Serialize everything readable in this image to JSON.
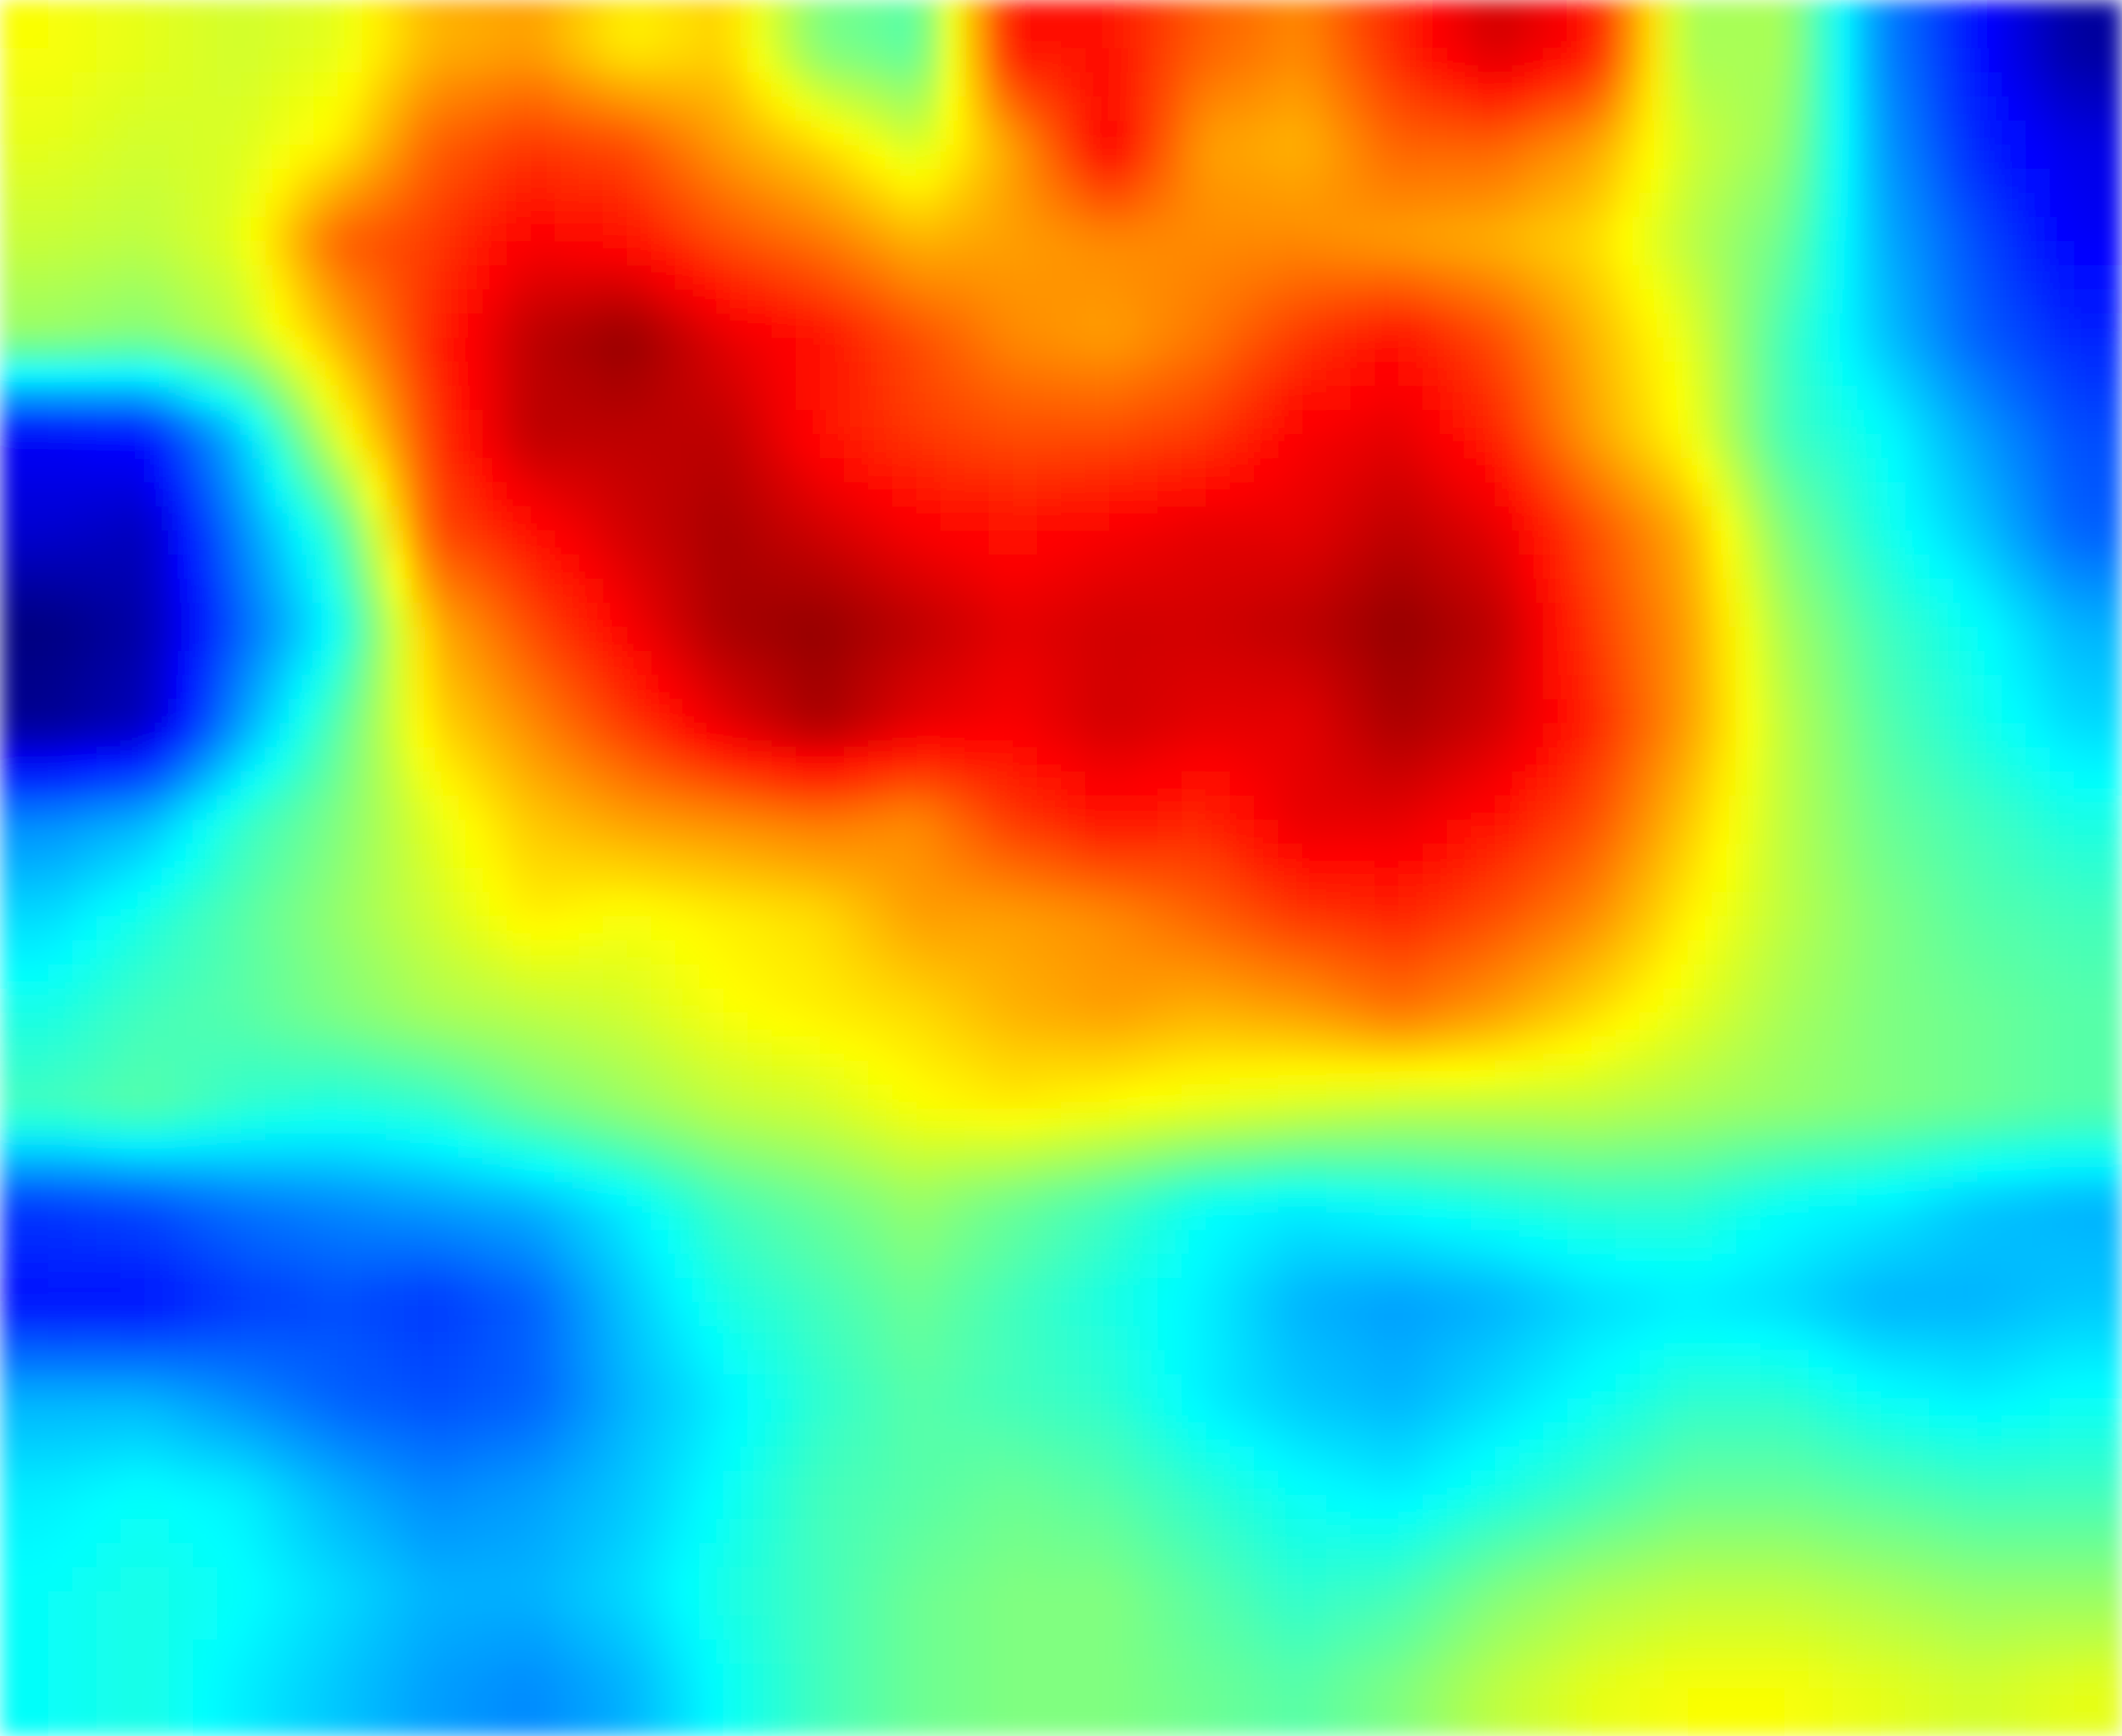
{
  "chart_data": {
    "type": "heatmap",
    "title": "",
    "xlabel": "",
    "ylabel": "",
    "colormap": "jet",
    "value_range": [
      0,
      1
    ],
    "interpolation": "bilinear",
    "grid": false,
    "legend": "none",
    "rows": 18,
    "cols": 22,
    "values": [
      [
        0.62,
        0.6,
        0.58,
        0.6,
        0.7,
        0.72,
        0.64,
        0.67,
        0.5,
        0.46,
        0.86,
        0.86,
        0.78,
        0.74,
        0.84,
        0.92,
        0.86,
        0.54,
        0.54,
        0.26,
        0.14,
        0.03
      ],
      [
        0.6,
        0.58,
        0.59,
        0.64,
        0.78,
        0.82,
        0.8,
        0.72,
        0.66,
        0.58,
        0.72,
        0.88,
        0.72,
        0.7,
        0.78,
        0.78,
        0.72,
        0.58,
        0.52,
        0.28,
        0.16,
        0.1
      ],
      [
        0.57,
        0.56,
        0.6,
        0.78,
        0.82,
        0.88,
        0.86,
        0.8,
        0.76,
        0.7,
        0.72,
        0.74,
        0.74,
        0.74,
        0.72,
        0.7,
        0.66,
        0.56,
        0.48,
        0.3,
        0.2,
        0.12
      ],
      [
        0.52,
        0.5,
        0.56,
        0.7,
        0.84,
        0.94,
        0.98,
        0.9,
        0.86,
        0.8,
        0.74,
        0.72,
        0.76,
        0.82,
        0.86,
        0.8,
        0.7,
        0.6,
        0.44,
        0.32,
        0.22,
        0.16
      ],
      [
        0.12,
        0.14,
        0.32,
        0.6,
        0.82,
        0.94,
        0.94,
        0.94,
        0.86,
        0.82,
        0.8,
        0.8,
        0.82,
        0.88,
        0.9,
        0.84,
        0.72,
        0.62,
        0.44,
        0.38,
        0.28,
        0.2
      ],
      [
        0.08,
        0.06,
        0.26,
        0.44,
        0.8,
        0.86,
        0.92,
        0.96,
        0.92,
        0.88,
        0.86,
        0.88,
        0.9,
        0.9,
        0.94,
        0.9,
        0.8,
        0.7,
        0.5,
        0.4,
        0.32,
        0.22
      ],
      [
        0.0,
        0.04,
        0.22,
        0.38,
        0.7,
        0.8,
        0.88,
        0.96,
        0.98,
        0.94,
        0.9,
        0.92,
        0.92,
        0.94,
        0.98,
        0.94,
        0.82,
        0.72,
        0.54,
        0.44,
        0.38,
        0.3
      ],
      [
        0.02,
        0.06,
        0.28,
        0.46,
        0.66,
        0.74,
        0.82,
        0.9,
        0.96,
        0.9,
        0.88,
        0.92,
        0.9,
        0.9,
        0.96,
        0.92,
        0.84,
        0.72,
        0.56,
        0.46,
        0.4,
        0.34
      ],
      [
        0.26,
        0.3,
        0.42,
        0.5,
        0.6,
        0.68,
        0.72,
        0.74,
        0.76,
        0.74,
        0.82,
        0.86,
        0.84,
        0.9,
        0.9,
        0.86,
        0.8,
        0.68,
        0.56,
        0.48,
        0.44,
        0.4
      ],
      [
        0.34,
        0.4,
        0.46,
        0.52,
        0.58,
        0.64,
        0.62,
        0.64,
        0.66,
        0.72,
        0.72,
        0.74,
        0.78,
        0.82,
        0.84,
        0.8,
        0.74,
        0.64,
        0.56,
        0.5,
        0.46,
        0.44
      ],
      [
        0.4,
        0.44,
        0.46,
        0.5,
        0.54,
        0.56,
        0.58,
        0.62,
        0.64,
        0.66,
        0.7,
        0.72,
        0.7,
        0.72,
        0.76,
        0.72,
        0.66,
        0.6,
        0.54,
        0.5,
        0.48,
        0.46
      ],
      [
        0.44,
        0.46,
        0.42,
        0.4,
        0.42,
        0.48,
        0.52,
        0.56,
        0.58,
        0.62,
        0.64,
        0.62,
        0.6,
        0.58,
        0.56,
        0.56,
        0.56,
        0.54,
        0.52,
        0.5,
        0.48,
        0.46
      ],
      [
        0.18,
        0.2,
        0.24,
        0.26,
        0.28,
        0.3,
        0.36,
        0.44,
        0.48,
        0.52,
        0.48,
        0.44,
        0.38,
        0.36,
        0.38,
        0.4,
        0.42,
        0.42,
        0.38,
        0.36,
        0.32,
        0.3
      ],
      [
        0.14,
        0.14,
        0.18,
        0.2,
        0.18,
        0.22,
        0.32,
        0.4,
        0.44,
        0.48,
        0.44,
        0.4,
        0.36,
        0.3,
        0.28,
        0.3,
        0.34,
        0.36,
        0.34,
        0.3,
        0.3,
        0.32
      ],
      [
        0.3,
        0.3,
        0.26,
        0.22,
        0.2,
        0.22,
        0.3,
        0.36,
        0.42,
        0.46,
        0.44,
        0.42,
        0.36,
        0.32,
        0.3,
        0.34,
        0.38,
        0.42,
        0.42,
        0.38,
        0.36,
        0.38
      ],
      [
        0.36,
        0.38,
        0.36,
        0.3,
        0.26,
        0.28,
        0.32,
        0.38,
        0.44,
        0.46,
        0.48,
        0.46,
        0.42,
        0.38,
        0.36,
        0.4,
        0.44,
        0.48,
        0.48,
        0.46,
        0.44,
        0.44
      ],
      [
        0.38,
        0.4,
        0.38,
        0.34,
        0.3,
        0.3,
        0.34,
        0.4,
        0.44,
        0.48,
        0.5,
        0.5,
        0.46,
        0.42,
        0.44,
        0.5,
        0.54,
        0.56,
        0.56,
        0.54,
        0.52,
        0.52
      ],
      [
        0.38,
        0.4,
        0.36,
        0.32,
        0.28,
        0.26,
        0.3,
        0.38,
        0.44,
        0.48,
        0.5,
        0.5,
        0.48,
        0.46,
        0.5,
        0.56,
        0.6,
        0.62,
        0.62,
        0.6,
        0.58,
        0.6
      ]
    ]
  }
}
